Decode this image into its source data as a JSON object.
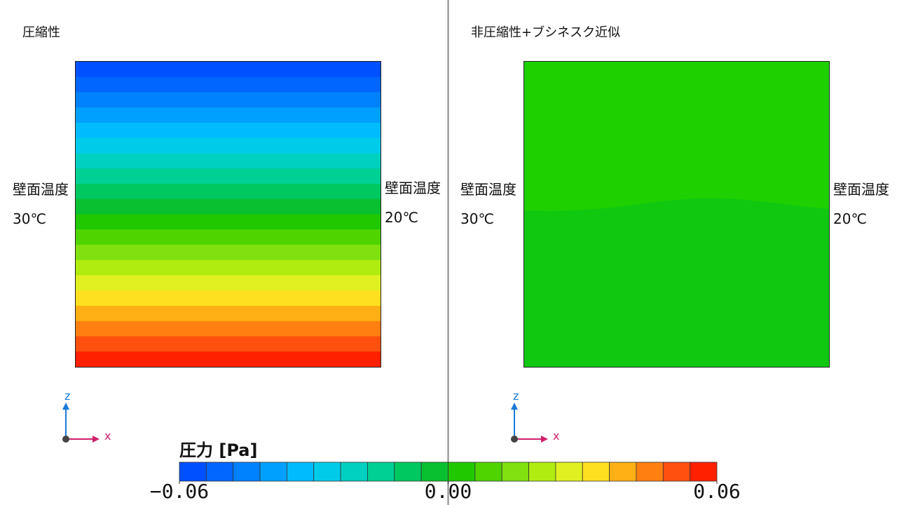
{
  "panels": [
    {
      "title": "圧縮性",
      "left_wall": {
        "label": "壁面温度",
        "temp": "30℃"
      },
      "right_wall": {
        "label": "壁面温度",
        "temp": "20℃"
      },
      "axes": {
        "z": "z",
        "x": "x"
      }
    },
    {
      "title": "非圧縮性+ブシネスク近似",
      "left_wall": {
        "label": "壁面温度",
        "temp": "30℃"
      },
      "right_wall": {
        "label": "壁面温度",
        "temp": "20℃"
      },
      "axes": {
        "z": "z",
        "x": "x"
      }
    }
  ],
  "legend": {
    "title": "圧力 [Pa]",
    "ticks": [
      {
        "value": -0.06,
        "label": "−0.06"
      },
      {
        "value": 0,
        "label": "0.00"
      },
      {
        "value": 0.06,
        "label": "0.06"
      }
    ],
    "colors": [
      "#0050ff",
      "#0066ff",
      "#0082ff",
      "#00a0ff",
      "#00bcff",
      "#00ccea",
      "#00d0c0",
      "#00d094",
      "#00c860",
      "#08c030",
      "#20c800",
      "#50d400",
      "#80e010",
      "#b0ec10",
      "#e0f020",
      "#ffe020",
      "#ffb014",
      "#ff8010",
      "#ff5010",
      "#ff2000"
    ]
  }
}
